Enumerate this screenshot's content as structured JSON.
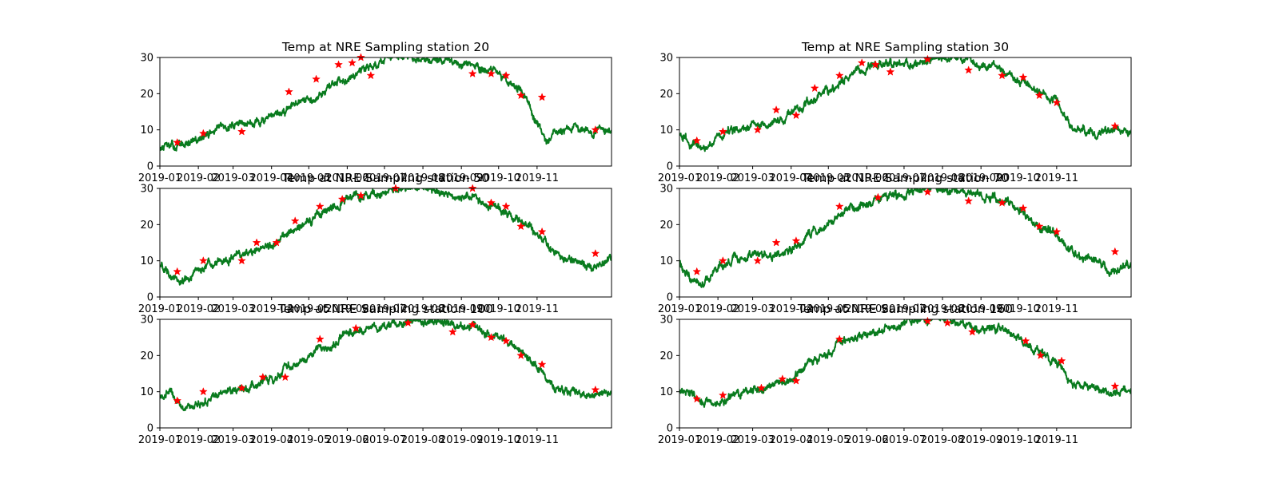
{
  "figure": {
    "background": "#ffffff",
    "axes_color": "#000000",
    "line_color": "#097b1e",
    "marker_color": "#ff0000"
  },
  "chart_data": [
    {
      "type": "line",
      "title": "Temp at NRE Sampling station 20",
      "xlabel": "",
      "ylabel": "",
      "ylim": [
        0,
        30
      ],
      "yticks": [
        0,
        10,
        20,
        30
      ],
      "xlim": [
        "2019-01-01",
        "2019-12-31"
      ],
      "xticks": [
        "2019-01",
        "2019-02",
        "2019-03",
        "2019-04",
        "2019-05",
        "2019-06",
        "2019-07",
        "2019-08",
        "2019-09",
        "2019-10",
        "2019-11"
      ],
      "series": [
        {
          "kind": "line",
          "x": [
            "2019-01-01",
            "2019-01-15",
            "2019-02-01",
            "2019-02-15",
            "2019-03-01",
            "2019-03-15",
            "2019-04-01",
            "2019-04-15",
            "2019-05-01",
            "2019-05-15",
            "2019-06-01",
            "2019-06-15",
            "2019-07-01",
            "2019-07-15",
            "2019-08-01",
            "2019-08-15",
            "2019-09-01",
            "2019-09-15",
            "2019-10-01",
            "2019-10-10",
            "2019-10-20",
            "2019-11-01",
            "2019-11-08",
            "2019-11-15",
            "2019-12-01",
            "2019-12-15",
            "2019-12-31"
          ],
          "y": [
            5,
            5.5,
            7,
            10,
            11.5,
            12,
            13,
            16,
            18,
            21,
            25,
            27,
            29,
            30,
            30,
            29,
            28,
            27,
            26,
            23,
            21,
            12,
            7,
            9,
            10,
            9.5,
            10.5
          ]
        },
        {
          "kind": "markers",
          "x": [
            "2019-01-15",
            "2019-02-05",
            "2019-03-08",
            "2019-04-15",
            "2019-05-07",
            "2019-05-25",
            "2019-06-05",
            "2019-06-12",
            "2019-06-20",
            "2019-09-10",
            "2019-09-25",
            "2019-10-07",
            "2019-10-19",
            "2019-11-05",
            "2019-12-18"
          ],
          "y": [
            6.5,
            9,
            9.5,
            20.5,
            24,
            28,
            28.5,
            30,
            25,
            25.5,
            25.5,
            25,
            19.5,
            19,
            10
          ]
        }
      ]
    },
    {
      "type": "line",
      "title": "Temp at NRE Sampling station 30",
      "xlabel": "",
      "ylabel": "",
      "ylim": [
        0,
        30
      ],
      "yticks": [
        0,
        10,
        20,
        30
      ],
      "xlim": [
        "2019-01-01",
        "2019-12-31"
      ],
      "xticks": [
        "2019-01",
        "2019-02",
        "2019-03",
        "2019-04",
        "2019-05",
        "2019-06",
        "2019-07",
        "2019-08",
        "2019-09",
        "2019-10",
        "2019-11"
      ],
      "series": [
        {
          "kind": "line",
          "x": [
            "2019-01-01",
            "2019-01-10",
            "2019-01-20",
            "2019-02-01",
            "2019-02-15",
            "2019-03-01",
            "2019-03-15",
            "2019-04-01",
            "2019-04-15",
            "2019-05-01",
            "2019-05-15",
            "2019-06-01",
            "2019-06-15",
            "2019-07-01",
            "2019-07-15",
            "2019-08-01",
            "2019-08-15",
            "2019-09-01",
            "2019-09-15",
            "2019-10-01",
            "2019-10-15",
            "2019-11-01",
            "2019-11-15",
            "2019-12-01",
            "2019-12-15",
            "2019-12-31"
          ],
          "y": [
            9,
            6,
            5,
            8,
            10,
            11,
            12,
            14,
            18,
            20,
            24,
            27,
            28,
            28,
            29,
            30,
            30,
            28,
            27,
            24,
            21,
            18,
            10,
            9,
            10,
            10
          ]
        },
        {
          "kind": "markers",
          "x": [
            "2019-01-15",
            "2019-02-05",
            "2019-03-05",
            "2019-03-20",
            "2019-04-05",
            "2019-04-20",
            "2019-05-10",
            "2019-05-28",
            "2019-06-08",
            "2019-06-20",
            "2019-07-20",
            "2019-08-22",
            "2019-09-18",
            "2019-10-05",
            "2019-10-18",
            "2019-11-01",
            "2019-12-18"
          ],
          "y": [
            7,
            9.5,
            10,
            15.5,
            14,
            21.5,
            25,
            28.5,
            28,
            26,
            29.5,
            26.5,
            25,
            24.5,
            19.5,
            17.5,
            11
          ]
        }
      ]
    },
    {
      "type": "line",
      "title": "Temp at NRE Sampling station 50",
      "xlabel": "",
      "ylabel": "",
      "ylim": [
        0,
        30
      ],
      "yticks": [
        0,
        10,
        20,
        30
      ],
      "xlim": [
        "2019-01-01",
        "2019-12-31"
      ],
      "xticks": [
        "2019-01",
        "2019-02",
        "2019-03",
        "2019-04",
        "2019-05",
        "2019-06",
        "2019-07",
        "2019-08",
        "2019-09",
        "2019-10",
        "2019-11"
      ],
      "series": [
        {
          "kind": "line",
          "x": [
            "2019-01-01",
            "2019-01-10",
            "2019-01-20",
            "2019-02-01",
            "2019-02-15",
            "2019-03-01",
            "2019-03-15",
            "2019-04-01",
            "2019-04-15",
            "2019-05-01",
            "2019-05-15",
            "2019-06-01",
            "2019-06-15",
            "2019-07-01",
            "2019-07-15",
            "2019-08-01",
            "2019-08-15",
            "2019-09-01",
            "2019-09-15",
            "2019-10-01",
            "2019-10-15",
            "2019-11-01",
            "2019-11-15",
            "2019-12-01",
            "2019-12-15",
            "2019-12-31"
          ],
          "y": [
            9,
            6,
            4,
            8,
            10,
            11,
            12,
            14,
            18,
            20,
            24,
            27,
            28,
            29,
            30,
            30,
            29,
            28,
            27,
            25,
            21,
            18,
            11,
            10,
            8,
            11
          ]
        },
        {
          "kind": "markers",
          "x": [
            "2019-01-15",
            "2019-02-05",
            "2019-03-08",
            "2019-03-20",
            "2019-04-05",
            "2019-04-20",
            "2019-05-10",
            "2019-05-28",
            "2019-06-12",
            "2019-07-10",
            "2019-09-10",
            "2019-09-25",
            "2019-10-07",
            "2019-10-19",
            "2019-11-05",
            "2019-12-18"
          ],
          "y": [
            7,
            10,
            10,
            15,
            15,
            21,
            25,
            27,
            28,
            30,
            30,
            26,
            25,
            19.5,
            18,
            12
          ]
        }
      ]
    },
    {
      "type": "line",
      "title": "Temp at NRE Sampling station 70",
      "xlabel": "",
      "ylabel": "",
      "ylim": [
        0,
        30
      ],
      "yticks": [
        0,
        10,
        20,
        30
      ],
      "xlim": [
        "2019-01-01",
        "2019-12-31"
      ],
      "xticks": [
        "2019-01",
        "2019-02",
        "2019-03",
        "2019-04",
        "2019-05",
        "2019-06",
        "2019-07",
        "2019-08",
        "2019-09",
        "2019-10",
        "2019-11"
      ],
      "series": [
        {
          "kind": "line",
          "x": [
            "2019-01-01",
            "2019-01-10",
            "2019-01-20",
            "2019-02-01",
            "2019-02-15",
            "2019-03-01",
            "2019-03-15",
            "2019-04-01",
            "2019-04-15",
            "2019-05-01",
            "2019-05-15",
            "2019-06-01",
            "2019-06-15",
            "2019-07-01",
            "2019-07-15",
            "2019-08-01",
            "2019-08-15",
            "2019-09-01",
            "2019-09-15",
            "2019-10-01",
            "2019-10-15",
            "2019-11-01",
            "2019-11-15",
            "2019-12-01",
            "2019-12-15",
            "2019-12-31"
          ],
          "y": [
            9,
            5,
            4,
            8,
            10,
            11,
            11,
            13,
            17,
            20,
            24,
            26,
            28,
            28,
            30,
            30,
            29,
            28,
            27,
            25,
            20,
            17,
            11,
            10,
            7,
            9
          ]
        },
        {
          "kind": "markers",
          "x": [
            "2019-01-15",
            "2019-02-05",
            "2019-03-05",
            "2019-03-20",
            "2019-04-05",
            "2019-05-10",
            "2019-06-10",
            "2019-07-20",
            "2019-08-22",
            "2019-09-18",
            "2019-10-05",
            "2019-10-18",
            "2019-11-01",
            "2019-12-18"
          ],
          "y": [
            7,
            10,
            10,
            15,
            15.5,
            25,
            27.5,
            29,
            26.5,
            26,
            24.5,
            19.5,
            18,
            12.5
          ]
        }
      ]
    },
    {
      "type": "line",
      "title": "Temp at NRE Sampling station 100",
      "xlabel": "",
      "ylabel": "",
      "ylim": [
        0,
        30
      ],
      "yticks": [
        0,
        10,
        20,
        30
      ],
      "xlim": [
        "2019-01-01",
        "2019-12-31"
      ],
      "xticks": [
        "2019-01",
        "2019-02",
        "2019-03",
        "2019-04",
        "2019-05",
        "2019-06",
        "2019-07",
        "2019-08",
        "2019-09",
        "2019-10",
        "2019-11"
      ],
      "series": [
        {
          "kind": "line",
          "x": [
            "2019-01-01",
            "2019-01-10",
            "2019-01-20",
            "2019-02-01",
            "2019-02-15",
            "2019-03-01",
            "2019-03-15",
            "2019-04-01",
            "2019-04-15",
            "2019-05-01",
            "2019-05-15",
            "2019-06-01",
            "2019-06-15",
            "2019-07-01",
            "2019-07-15",
            "2019-08-01",
            "2019-08-15",
            "2019-09-01",
            "2019-09-15",
            "2019-10-01",
            "2019-10-15",
            "2019-11-01",
            "2019-11-15",
            "2019-12-01",
            "2019-12-15",
            "2019-12-31"
          ],
          "y": [
            9,
            10,
            5,
            6,
            9,
            10,
            12,
            13,
            17,
            20,
            23,
            26,
            27,
            28,
            29,
            30,
            29,
            28,
            27,
            25,
            22,
            17,
            11,
            10,
            9,
            9
          ]
        },
        {
          "kind": "markers",
          "x": [
            "2019-01-15",
            "2019-02-05",
            "2019-03-08",
            "2019-03-25",
            "2019-04-12",
            "2019-05-10",
            "2019-06-08",
            "2019-07-20",
            "2019-08-25",
            "2019-09-10",
            "2019-09-25",
            "2019-10-07",
            "2019-10-19",
            "2019-11-05",
            "2019-12-18"
          ],
          "y": [
            7.5,
            10,
            11,
            14,
            14,
            24.5,
            27.5,
            29,
            26.5,
            28.5,
            25,
            24,
            20,
            17.5,
            10.5
          ]
        }
      ]
    },
    {
      "type": "line",
      "title": "Temp at NRE Sampling station 160",
      "xlabel": "",
      "ylabel": "",
      "ylim": [
        0,
        30
      ],
      "yticks": [
        0,
        10,
        20,
        30
      ],
      "xlim": [
        "2019-01-01",
        "2019-12-31"
      ],
      "xticks": [
        "2019-01",
        "2019-02",
        "2019-03",
        "2019-04",
        "2019-05",
        "2019-06",
        "2019-07",
        "2019-08",
        "2019-09",
        "2019-10",
        "2019-11"
      ],
      "series": [
        {
          "kind": "line",
          "x": [
            "2019-01-01",
            "2019-01-10",
            "2019-01-20",
            "2019-02-01",
            "2019-02-15",
            "2019-03-01",
            "2019-03-15",
            "2019-04-01",
            "2019-04-15",
            "2019-05-01",
            "2019-05-15",
            "2019-06-01",
            "2019-06-15",
            "2019-07-01",
            "2019-07-15",
            "2019-08-01",
            "2019-08-15",
            "2019-09-01",
            "2019-09-15",
            "2019-10-01",
            "2019-10-15",
            "2019-11-01",
            "2019-11-15",
            "2019-12-01",
            "2019-12-15",
            "2019-12-31"
          ],
          "y": [
            10,
            10,
            7,
            6,
            9,
            10,
            12,
            13,
            18,
            21,
            24,
            26,
            27,
            29,
            30,
            30,
            29,
            27,
            27,
            25,
            21,
            18,
            12,
            11,
            9,
            10
          ]
        },
        {
          "kind": "markers",
          "x": [
            "2019-01-15",
            "2019-02-05",
            "2019-03-08",
            "2019-03-25",
            "2019-04-05",
            "2019-05-10",
            "2019-07-20",
            "2019-08-05",
            "2019-08-25",
            "2019-10-07",
            "2019-10-19",
            "2019-11-05",
            "2019-12-18"
          ],
          "y": [
            8,
            9,
            11,
            13.5,
            13,
            24.5,
            29.5,
            29,
            26.5,
            24,
            20,
            18.5,
            11.5
          ]
        }
      ]
    }
  ]
}
